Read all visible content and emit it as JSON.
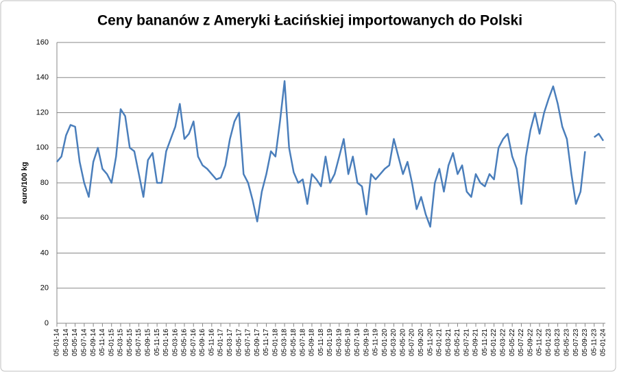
{
  "chart_data": {
    "type": "line",
    "title": "Ceny bananów z Ameryki Łacińskiej importowanych do Polski",
    "y_label": "euro/100 kg",
    "categories": [
      "05-01-14",
      null,
      "05-03-14",
      null,
      "05-05-14",
      null,
      "05-07-14",
      null,
      "05-09-14",
      null,
      "05-11-14",
      null,
      "05-01-15",
      null,
      "05-03-15",
      null,
      "05-05-15",
      null,
      "05-07-15",
      null,
      "05-09-15",
      null,
      "05-11-15",
      null,
      "05-01-16",
      null,
      "05-03-16",
      null,
      "05-05-16",
      null,
      "05-07-16",
      null,
      "05-09-16",
      null,
      "05-11-16",
      null,
      "05-01-17",
      null,
      "05-03-17",
      null,
      "05-05-17",
      null,
      "05-07-17",
      null,
      "05-09-17",
      null,
      "05-11-17",
      null,
      "05-01-18",
      null,
      "05-03-18",
      null,
      "05-05-18",
      null,
      "05-07-18",
      null,
      "05-09-18",
      null,
      "05-11-18",
      null,
      "05-01-19",
      null,
      "05-03-19",
      null,
      "05-05-19",
      null,
      "05-07-19",
      null,
      "05-09-19",
      null,
      "05-11-19",
      null,
      "05-01-20",
      null,
      "05-03-20",
      null,
      "05-05-20",
      null,
      "05-07-20",
      null,
      "05-09-20",
      null,
      "05-11-20",
      null,
      "05-01-21",
      null,
      "05-03-21",
      null,
      "05-05-21",
      null,
      "05-07-21",
      null,
      "05-09-21",
      null,
      "05-11-21",
      null,
      "05-01-22",
      null,
      "05-03-22",
      null,
      "05-05-22",
      null,
      "05-07-22",
      null,
      "05-09-22",
      null,
      "05-11-22",
      null,
      "05-01-23",
      null,
      "05-03-23",
      null,
      "05-05-23",
      null,
      "05-07-23",
      null,
      "05-09-23",
      null,
      "05-11-23",
      null,
      "05-01-24"
    ],
    "series": [
      {
        "color": "#4a7ebb",
        "values": [
          92,
          95,
          107,
          113,
          112,
          92,
          80,
          72,
          92,
          100,
          88,
          85,
          80,
          95,
          122,
          118,
          100,
          98,
          85,
          72,
          93,
          97,
          80,
          80,
          98,
          105,
          112,
          125,
          105,
          108,
          115,
          95,
          90,
          88,
          85,
          82,
          83,
          90,
          105,
          115,
          120,
          85,
          80,
          70,
          58,
          75,
          85,
          98,
          95,
          115,
          138,
          100,
          86,
          80,
          82,
          68,
          85,
          82,
          78,
          95,
          80,
          85,
          95,
          105,
          85,
          95,
          80,
          78,
          62,
          85,
          82,
          85,
          88,
          90,
          105,
          95,
          85,
          92,
          80,
          65,
          72,
          62,
          55,
          80,
          88,
          75,
          90,
          97,
          85,
          90,
          75,
          72,
          85,
          80,
          78,
          85,
          82,
          100,
          105,
          108,
          95,
          88,
          68,
          95,
          110,
          120,
          108,
          120,
          128,
          135,
          125,
          112,
          105,
          85,
          68,
          75,
          98,
          null,
          106,
          108,
          104
        ]
      }
    ],
    "ylim": [
      0,
      160
    ],
    "yticks": [
      0,
      20,
      40,
      60,
      80,
      100,
      120,
      140,
      160
    ],
    "grid": true
  }
}
